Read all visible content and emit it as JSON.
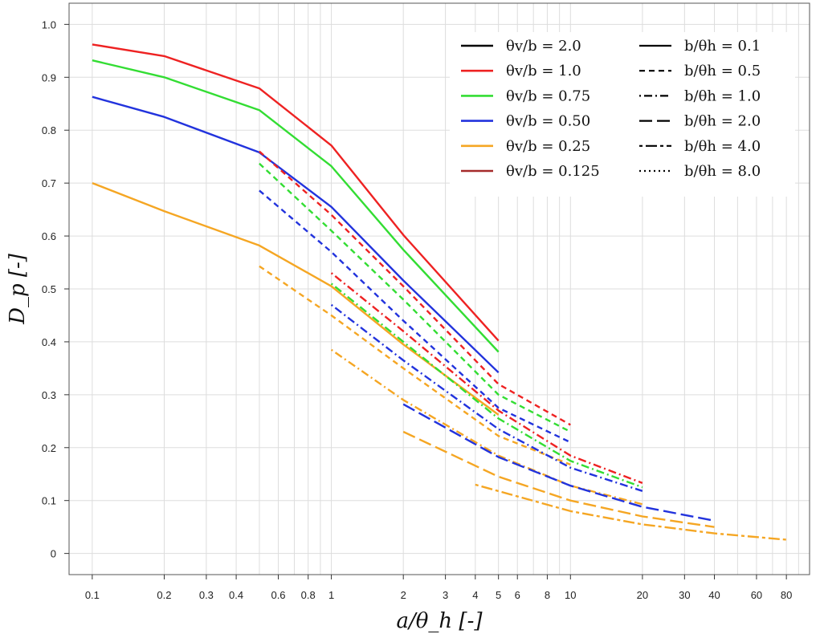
{
  "chart_data": {
    "type": "line",
    "xlabel": "a/θ_h [-]",
    "ylabel": "D_p [-]",
    "xscale": "log",
    "xlim": [
      0.08,
      100
    ],
    "ylim": [
      -0.04,
      1.04
    ],
    "grid": true,
    "legend_position": "top-right",
    "x_ticks": [
      {
        "v": 0.1,
        "label": "0.1"
      },
      {
        "v": 0.2,
        "label": "0.2"
      },
      {
        "v": 0.3,
        "label": "0.3"
      },
      {
        "v": 0.4,
        "label": "0.4"
      },
      {
        "v": 0.6,
        "label": "0.6"
      },
      {
        "v": 0.8,
        "label": "0.8"
      },
      {
        "v": 1,
        "label": "1"
      },
      {
        "v": 2,
        "label": "2"
      },
      {
        "v": 3,
        "label": "3"
      },
      {
        "v": 4,
        "label": "4"
      },
      {
        "v": 5,
        "label": "5"
      },
      {
        "v": 6,
        "label": "6"
      },
      {
        "v": 8,
        "label": "8"
      },
      {
        "v": 10,
        "label": "10"
      },
      {
        "v": 20,
        "label": "20"
      },
      {
        "v": 30,
        "label": "30"
      },
      {
        "v": 40,
        "label": "40"
      },
      {
        "v": 60,
        "label": "60"
      },
      {
        "v": 80,
        "label": "80"
      }
    ],
    "x_grid": [
      0.1,
      0.2,
      0.3,
      0.4,
      0.5,
      0.6,
      0.7,
      0.8,
      0.9,
      1,
      2,
      3,
      4,
      5,
      6,
      7,
      8,
      9,
      10,
      20,
      30,
      40,
      50,
      60,
      70,
      80,
      90
    ],
    "y_ticks": [
      {
        "v": 0,
        "label": "0"
      },
      {
        "v": 0.1,
        "label": "0.1"
      },
      {
        "v": 0.2,
        "label": "0.2"
      },
      {
        "v": 0.3,
        "label": "0.3"
      },
      {
        "v": 0.4,
        "label": "0.4"
      },
      {
        "v": 0.5,
        "label": "0.5"
      },
      {
        "v": 0.6,
        "label": "0.6"
      },
      {
        "v": 0.7,
        "label": "0.7"
      },
      {
        "v": 0.8,
        "label": "0.8"
      },
      {
        "v": 0.9,
        "label": "0.9"
      },
      {
        "v": 1.0,
        "label": "1.0"
      }
    ],
    "colors": {
      "2.0": "#000000",
      "1.0": "#ee2222",
      "0.75": "#33dd33",
      "0.50": "#2233dd",
      "0.25": "#f5a623",
      "0.125": "#a52a2a"
    },
    "legend_color": [
      {
        "label": "θv/b = 2.0",
        "color": "#000000"
      },
      {
        "label": "θv/b = 1.0",
        "color": "#ee2222"
      },
      {
        "label": "θv/b = 0.75",
        "color": "#33dd33"
      },
      {
        "label": "θv/b = 0.50",
        "color": "#2233dd"
      },
      {
        "label": "θv/b = 0.25",
        "color": "#f5a623"
      },
      {
        "label": "θv/b = 0.125",
        "color": "#a52a2a"
      }
    ],
    "legend_style": [
      {
        "label": "b/θh = 0.1",
        "dash": "solid"
      },
      {
        "label": "b/θh = 0.5",
        "dash": "dashed"
      },
      {
        "label": "b/θh = 1.0",
        "dash": "dotdash"
      },
      {
        "label": "b/θh = 2.0",
        "dash": "longdash"
      },
      {
        "label": "b/θh = 4.0",
        "dash": "twodash"
      },
      {
        "label": "b/θh = 8.0",
        "dash": "dotted"
      }
    ],
    "series": [
      {
        "color": "#ee2222",
        "dash": "solid",
        "x": [
          0.1,
          0.2,
          0.5,
          1,
          2,
          5
        ],
        "y": [
          0.962,
          0.94,
          0.879,
          0.771,
          0.602,
          0.402
        ]
      },
      {
        "color": "#33dd33",
        "dash": "solid",
        "x": [
          0.1,
          0.2,
          0.5,
          1,
          2,
          5
        ],
        "y": [
          0.932,
          0.9,
          0.838,
          0.732,
          0.574,
          0.381
        ]
      },
      {
        "color": "#2233dd",
        "dash": "solid",
        "x": [
          0.1,
          0.2,
          0.5,
          1,
          2,
          5
        ],
        "y": [
          0.863,
          0.825,
          0.758,
          0.655,
          0.516,
          0.342
        ]
      },
      {
        "color": "#f5a623",
        "dash": "solid",
        "x": [
          0.1,
          0.2,
          0.5,
          1,
          2,
          5
        ],
        "y": [
          0.7,
          0.647,
          0.582,
          0.505,
          0.395,
          0.262
        ]
      },
      {
        "color": "#ee2222",
        "dash": "dashed",
        "x": [
          0.5,
          1,
          2,
          5,
          10
        ],
        "y": [
          0.76,
          0.64,
          0.505,
          0.32,
          0.243
        ]
      },
      {
        "color": "#33dd33",
        "dash": "dashed",
        "x": [
          0.5,
          1,
          2,
          5,
          10
        ],
        "y": [
          0.737,
          0.61,
          0.48,
          0.3,
          0.23
        ]
      },
      {
        "color": "#2233dd",
        "dash": "dashed",
        "x": [
          0.5,
          1,
          2,
          5,
          10
        ],
        "y": [
          0.686,
          0.57,
          0.44,
          0.275,
          0.21
        ]
      },
      {
        "color": "#f5a623",
        "dash": "dashed",
        "x": [
          0.5,
          1,
          2,
          5,
          10
        ],
        "y": [
          0.543,
          0.45,
          0.35,
          0.222,
          0.168
        ]
      },
      {
        "color": "#ee2222",
        "dash": "dotdash",
        "x": [
          1,
          2,
          5,
          10,
          20
        ],
        "y": [
          0.53,
          0.42,
          0.27,
          0.185,
          0.133
        ]
      },
      {
        "color": "#33dd33",
        "dash": "dotdash",
        "x": [
          1,
          2,
          5,
          10,
          20
        ],
        "y": [
          0.51,
          0.4,
          0.255,
          0.175,
          0.125
        ]
      },
      {
        "color": "#2233dd",
        "dash": "dotdash",
        "x": [
          1,
          2,
          5,
          10,
          20
        ],
        "y": [
          0.47,
          0.365,
          0.235,
          0.162,
          0.118
        ]
      },
      {
        "color": "#f5a623",
        "dash": "dotdash",
        "x": [
          1,
          2,
          5,
          10,
          20
        ],
        "y": [
          0.385,
          0.29,
          0.185,
          0.128,
          0.093
        ]
      },
      {
        "color": "#2233dd",
        "dash": "longdash",
        "x": [
          2,
          5,
          10,
          20,
          40
        ],
        "y": [
          0.282,
          0.182,
          0.128,
          0.088,
          0.062
        ]
      },
      {
        "color": "#f5a623",
        "dash": "longdash",
        "x": [
          2,
          5,
          10,
          20,
          40
        ],
        "y": [
          0.23,
          0.145,
          0.1,
          0.07,
          0.05
        ]
      },
      {
        "color": "#f5a623",
        "dash": "twodash",
        "x": [
          4,
          10,
          20,
          40,
          80
        ],
        "y": [
          0.13,
          0.08,
          0.055,
          0.038,
          0.026
        ]
      }
    ]
  }
}
